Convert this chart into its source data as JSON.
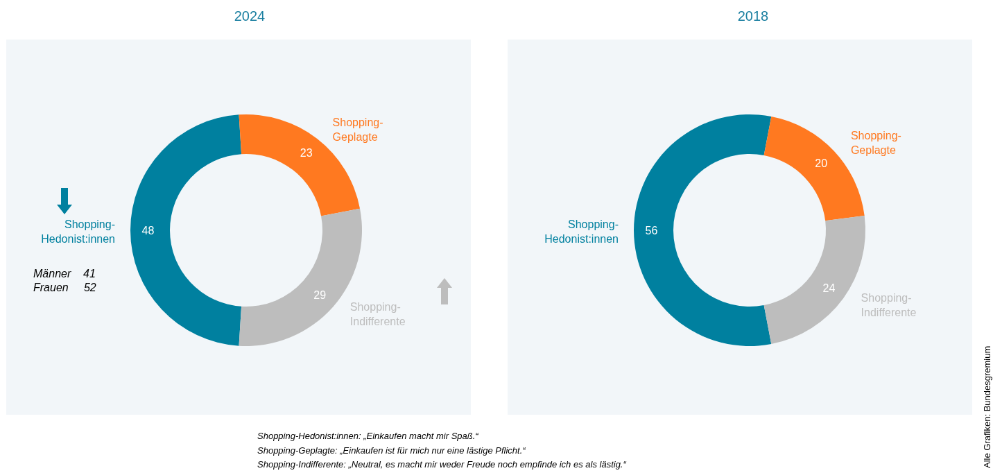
{
  "chart_data": [
    {
      "type": "donut",
      "title": "2024",
      "categories": [
        "Shopping-\nHedonist:innen",
        "Shopping-\nGeplagte",
        "Shopping-\nIndifferente"
      ],
      "values": [
        48,
        23,
        29
      ],
      "colors": [
        "#00809f",
        "#ff7920",
        "#bdbdbd"
      ],
      "data_labels": true,
      "annotations": [
        "Männer    41",
        "Frauen     52",
        "Shopping-Hedonist:innen: „Einkaufen macht mir Spaß.“",
        "Shopping-Geplagte: „Einkaufen ist für mich nur eine lästige Pflicht.“",
        "Shopping-Indifferente: „Neutral, es macht mir weder Freude noch empfinde ich es als lästig.“",
        "Alle Grafiken: Bundesgremium"
      ]
    },
    {
      "type": "donut",
      "title": "2018",
      "categories": [
        "Shopping-\nHedonist:innen",
        "Shopping-\nGeplagte",
        "Shopping-\nIndifferente"
      ],
      "values": [
        56,
        20,
        24
      ],
      "colors": [
        "#00809f",
        "#ff7920",
        "#bdbdbd"
      ],
      "data_labels": true
    }
  ]
}
